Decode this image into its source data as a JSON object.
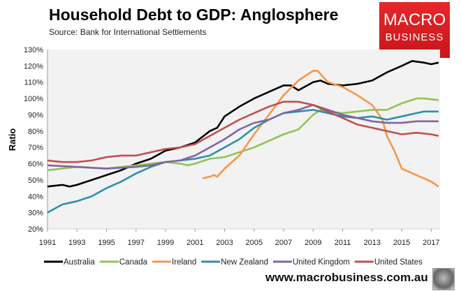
{
  "chart_data": {
    "type": "line",
    "title": "Household Debt to GDP: Anglosphere",
    "subtitle": "Source: Bank for International Settlements",
    "ylabel": "Ratio",
    "xlabel": "",
    "ylim": [
      20,
      130
    ],
    "xlim": [
      1991,
      2017.6
    ],
    "yticks": [
      "20%",
      "30%",
      "40%",
      "50%",
      "60%",
      "70%",
      "80%",
      "90%",
      "100%",
      "110%",
      "120%",
      "130%"
    ],
    "xticks": [
      "1991",
      "1993",
      "1995",
      "1997",
      "1999",
      "2001",
      "2003",
      "2005",
      "2007",
      "2009",
      "2011",
      "2013",
      "2015",
      "2017"
    ],
    "grid": false,
    "legend_position": "bottom",
    "series": [
      {
        "name": "Australia",
        "color": "#000000",
        "points": [
          [
            1991,
            46
          ],
          [
            1992,
            47
          ],
          [
            1992.5,
            46
          ],
          [
            1993,
            47
          ],
          [
            1994,
            50
          ],
          [
            1995,
            53
          ],
          [
            1996,
            56
          ],
          [
            1997,
            60
          ],
          [
            1998,
            63
          ],
          [
            1999,
            68
          ],
          [
            2000,
            70
          ],
          [
            2001,
            73
          ],
          [
            2002,
            80
          ],
          [
            2002.5,
            82
          ],
          [
            2003,
            89
          ],
          [
            2004,
            95
          ],
          [
            2005,
            100
          ],
          [
            2006,
            104
          ],
          [
            2007,
            108
          ],
          [
            2007.5,
            108
          ],
          [
            2008,
            105
          ],
          [
            2009,
            110
          ],
          [
            2009.5,
            111
          ],
          [
            2010,
            109
          ],
          [
            2011,
            108
          ],
          [
            2012,
            109
          ],
          [
            2013,
            111
          ],
          [
            2014,
            116
          ],
          [
            2015,
            120
          ],
          [
            2015.7,
            123
          ],
          [
            2016.5,
            122
          ],
          [
            2017,
            121
          ],
          [
            2017.5,
            122
          ]
        ]
      },
      {
        "name": "Canada",
        "color": "#92c353",
        "points": [
          [
            1991,
            56
          ],
          [
            1992,
            57
          ],
          [
            1993,
            58
          ],
          [
            1995,
            57
          ],
          [
            1997,
            59
          ],
          [
            1999,
            61
          ],
          [
            2000,
            60
          ],
          [
            2000.5,
            59
          ],
          [
            2001,
            60
          ],
          [
            2002,
            63
          ],
          [
            2003,
            64
          ],
          [
            2004,
            67
          ],
          [
            2005,
            70
          ],
          [
            2006,
            74
          ],
          [
            2007,
            78
          ],
          [
            2008,
            81
          ],
          [
            2009,
            90
          ],
          [
            2009.5,
            93
          ],
          [
            2010,
            92
          ],
          [
            2011,
            91
          ],
          [
            2012,
            92
          ],
          [
            2013,
            93
          ],
          [
            2014,
            93
          ],
          [
            2015,
            97
          ],
          [
            2016,
            100
          ],
          [
            2016.5,
            100
          ],
          [
            2017.5,
            99
          ]
        ]
      },
      {
        "name": "Ireland",
        "color": "#f79646",
        "points": [
          [
            2001.5,
            51
          ],
          [
            2002,
            52
          ],
          [
            2002.3,
            53
          ],
          [
            2002.5,
            52
          ],
          [
            2003,
            57
          ],
          [
            2004,
            65
          ],
          [
            2005,
            78
          ],
          [
            2006,
            90
          ],
          [
            2007,
            102
          ],
          [
            2008,
            111
          ],
          [
            2009,
            117
          ],
          [
            2009.3,
            117
          ],
          [
            2010,
            110
          ],
          [
            2011,
            107
          ],
          [
            2012,
            102
          ],
          [
            2013,
            96
          ],
          [
            2013.7,
            87
          ],
          [
            2014,
            77
          ],
          [
            2014.5,
            68
          ],
          [
            2015,
            57
          ],
          [
            2016,
            53
          ],
          [
            2016.5,
            51
          ],
          [
            2017,
            49
          ],
          [
            2017.5,
            46
          ]
        ]
      },
      {
        "name": "New Zealand",
        "color": "#2e8fa8",
        "points": [
          [
            1991,
            30
          ],
          [
            1992,
            35
          ],
          [
            1993,
            37
          ],
          [
            1994,
            40
          ],
          [
            1995,
            45
          ],
          [
            1996,
            49
          ],
          [
            1997,
            54
          ],
          [
            1998,
            58
          ],
          [
            1999,
            61
          ],
          [
            2000,
            62
          ],
          [
            2001,
            63
          ],
          [
            2002,
            65
          ],
          [
            2003,
            70
          ],
          [
            2004,
            75
          ],
          [
            2005,
            82
          ],
          [
            2006,
            87
          ],
          [
            2007,
            91
          ],
          [
            2008,
            92
          ],
          [
            2009,
            93
          ],
          [
            2010,
            91
          ],
          [
            2011,
            89
          ],
          [
            2012,
            88
          ],
          [
            2013,
            89
          ],
          [
            2014,
            87
          ],
          [
            2015,
            89
          ],
          [
            2016,
            91
          ],
          [
            2016.5,
            92
          ],
          [
            2017.5,
            92
          ]
        ]
      },
      {
        "name": "United Kingdom",
        "color": "#8064a2",
        "points": [
          [
            1991,
            59
          ],
          [
            1993,
            58
          ],
          [
            1995,
            57
          ],
          [
            1997,
            58
          ],
          [
            1998,
            59
          ],
          [
            1999,
            61
          ],
          [
            2000,
            62
          ],
          [
            2001,
            65
          ],
          [
            2002,
            70
          ],
          [
            2003,
            75
          ],
          [
            2004,
            81
          ],
          [
            2005,
            85
          ],
          [
            2006,
            87
          ],
          [
            2007,
            91
          ],
          [
            2008,
            93
          ],
          [
            2009,
            96
          ],
          [
            2010,
            93
          ],
          [
            2011,
            90
          ],
          [
            2012,
            88
          ],
          [
            2013,
            86
          ],
          [
            2014,
            85
          ],
          [
            2015,
            85
          ],
          [
            2016,
            86
          ],
          [
            2017.5,
            86
          ]
        ]
      },
      {
        "name": "United States",
        "color": "#c0504d",
        "points": [
          [
            1991,
            62
          ],
          [
            1992,
            61
          ],
          [
            1993,
            61
          ],
          [
            1994,
            62
          ],
          [
            1995,
            64
          ],
          [
            1996,
            65
          ],
          [
            1997,
            65
          ],
          [
            1998,
            67
          ],
          [
            1999,
            69
          ],
          [
            2000,
            70
          ],
          [
            2001,
            72
          ],
          [
            2002,
            77
          ],
          [
            2003,
            82
          ],
          [
            2004,
            87
          ],
          [
            2005,
            91
          ],
          [
            2006,
            95
          ],
          [
            2007,
            98
          ],
          [
            2008,
            98
          ],
          [
            2009,
            96
          ],
          [
            2010,
            92
          ],
          [
            2011,
            88
          ],
          [
            2012,
            84
          ],
          [
            2013,
            82
          ],
          [
            2014,
            80
          ],
          [
            2015,
            78
          ],
          [
            2016,
            79
          ],
          [
            2017,
            78
          ],
          [
            2017.5,
            77
          ]
        ]
      }
    ]
  },
  "branding": {
    "logo_line1": "MACRO",
    "logo_line2": "BUSINESS",
    "website": "www.macrobusiness.com.au"
  }
}
